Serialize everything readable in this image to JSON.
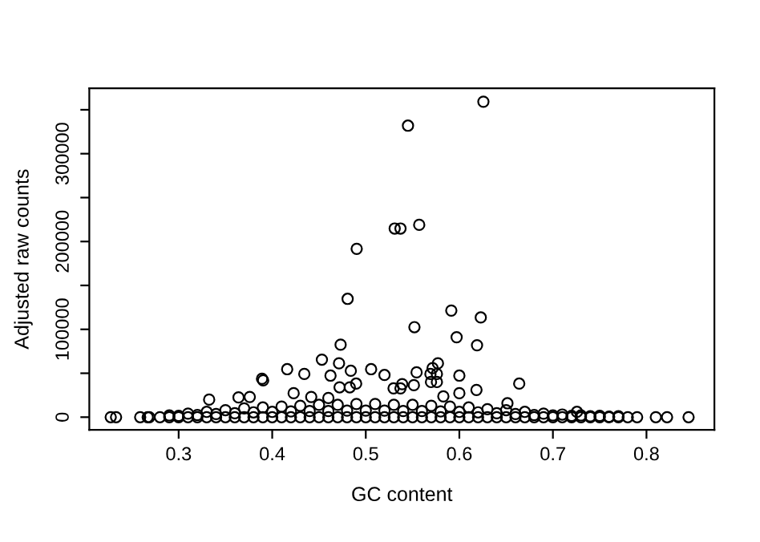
{
  "chart_data": {
    "type": "scatter",
    "xlabel": "GC content",
    "ylabel": "Adjusted raw counts",
    "xlim": [
      0.2045,
      0.8726
    ],
    "ylim": [
      -14400,
      374400
    ],
    "xticks": [
      0.3,
      0.4,
      0.5,
      0.6,
      0.7,
      0.8
    ],
    "yticks": [
      0,
      {
        "value": 50000,
        "label": null
      },
      100000,
      {
        "value": 150000,
        "label": null
      },
      200000,
      {
        "value": 250000,
        "label": null
      },
      300000,
      {
        "value": 350000,
        "label": null
      }
    ],
    "marker": "circle",
    "grid": false,
    "series": [
      {
        "color": "#000000",
        "x": [
          0.6257,
          0.5451,
          0.5309,
          0.5371,
          0.5571,
          0.4903,
          0.4806,
          0.5914,
          0.6229,
          0.552,
          0.5971,
          0.6189,
          0.4731,
          0.4531,
          0.4714,
          0.5771,
          0.5714,
          0.416,
          0.4343,
          0.5057,
          0.484,
          0.4623,
          0.5543,
          0.52,
          0.5691,
          0.576,
          0.6,
          0.3891,
          0.3903,
          0.4897,
          0.472,
          0.4829,
          0.5697,
          0.576,
          0.664,
          0.5297,
          0.5371,
          0.5389,
          0.5514,
          0.3326,
          0.364,
          0.376,
          0.4229,
          0.4417,
          0.46,
          0.6,
          0.6183,
          0.6514,
          0.5829,
          0.7257,
          0.2274,
          0.2331,
          0.2589,
          0.2669,
          0.2686,
          0.81,
          0.822,
          0.845,
          0.28,
          0.29,
          0.3,
          0.31,
          0.32,
          0.33,
          0.34,
          0.35,
          0.36,
          0.37,
          0.38,
          0.39,
          0.4,
          0.41,
          0.42,
          0.43,
          0.44,
          0.45,
          0.46,
          0.47,
          0.48,
          0.49,
          0.5,
          0.51,
          0.52,
          0.53,
          0.54,
          0.55,
          0.56,
          0.57,
          0.58,
          0.59,
          0.6,
          0.61,
          0.62,
          0.63,
          0.64,
          0.65,
          0.66,
          0.67,
          0.68,
          0.69,
          0.7,
          0.71,
          0.72,
          0.73,
          0.74,
          0.75,
          0.76,
          0.77,
          0.78,
          0.79,
          0.29,
          0.31,
          0.33,
          0.35,
          0.37,
          0.39,
          0.41,
          0.43,
          0.45,
          0.47,
          0.49,
          0.51,
          0.53,
          0.55,
          0.57,
          0.59,
          0.61,
          0.63,
          0.65,
          0.67,
          0.69,
          0.71,
          0.73,
          0.75,
          0.77,
          0.3,
          0.32,
          0.34,
          0.36,
          0.38,
          0.4,
          0.42,
          0.44,
          0.46,
          0.48,
          0.5,
          0.52,
          0.54,
          0.56,
          0.58,
          0.6,
          0.62,
          0.64,
          0.66,
          0.68,
          0.7,
          0.72,
          0.74,
          0.76
        ],
        "values": [
          359200,
          331900,
          214800,
          214800,
          219000,
          191700,
          134700,
          121400,
          113500,
          102500,
          91000,
          81900,
          82500,
          65500,
          61300,
          61300,
          55800,
          54600,
          49200,
          54600,
          52800,
          47300,
          51000,
          48000,
          49200,
          49200,
          47300,
          43700,
          41900,
          38200,
          34000,
          34000,
          40000,
          40000,
          38200,
          32800,
          32800,
          37600,
          36400,
          20000,
          22500,
          23000,
          27300,
          23000,
          21800,
          27300,
          31000,
          15800,
          23700,
          6000,
          0,
          0,
          0,
          0,
          0,
          0,
          0,
          0,
          0,
          0,
          0,
          0,
          0,
          0,
          0,
          0,
          0,
          0,
          0,
          0,
          0,
          0,
          0,
          0,
          0,
          0,
          0,
          0,
          0,
          0,
          0,
          0,
          0,
          0,
          0,
          0,
          0,
          0,
          0,
          0,
          0,
          0,
          0,
          0,
          0,
          0,
          0,
          0,
          0,
          0,
          0,
          0,
          0,
          0,
          0,
          0,
          0,
          0,
          0,
          0,
          2000,
          4000,
          6000,
          8000,
          10000,
          11000,
          12000,
          13000,
          14000,
          14000,
          15000,
          15000,
          14000,
          14000,
          13000,
          12000,
          11000,
          9000,
          8000,
          6000,
          4000,
          3000,
          2000,
          1500,
          1000,
          1500,
          2500,
          3500,
          4500,
          5500,
          6000,
          6500,
          7000,
          7000,
          7500,
          7500,
          7500,
          7000,
          7000,
          6500,
          6000,
          5500,
          4500,
          3500,
          2500,
          2000,
          1500,
          1000,
          500
        ]
      }
    ]
  }
}
